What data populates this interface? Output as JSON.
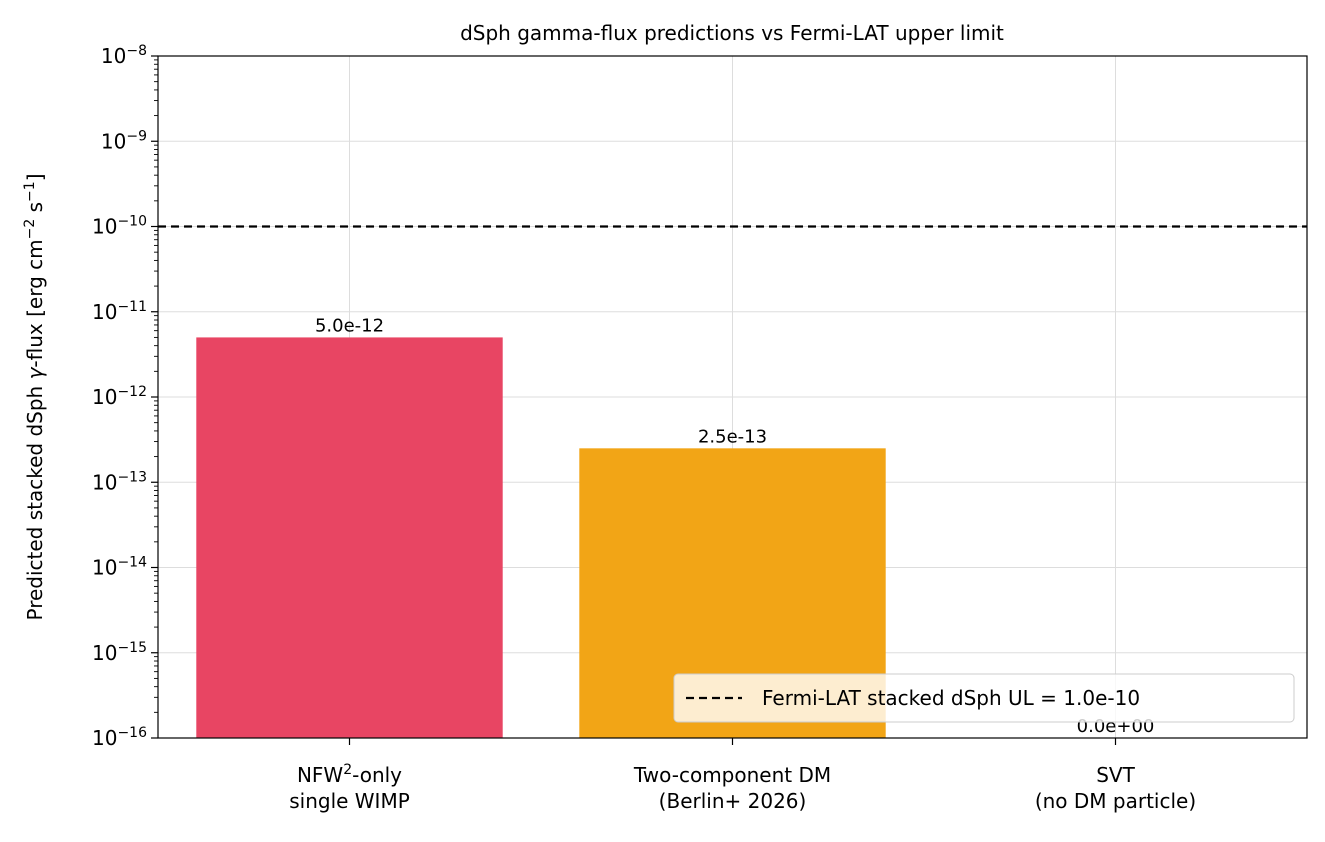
{
  "chart_data": {
    "type": "bar",
    "title": "dSph gamma-flux predictions vs Fermi-LAT upper limit",
    "ylabel": {
      "pre": "Predicted stacked dSph ",
      "gamma": "γ",
      "mid": "-flux [erg cm",
      "sup1": "−2",
      "mid2": " s",
      "sup2": "−1",
      "post": "]"
    },
    "yscale": "log",
    "ylim": [
      1e-16,
      1e-08
    ],
    "ytick_exponents": [
      "−16",
      "−15",
      "−14",
      "−13",
      "−12",
      "−11",
      "−10",
      "−9",
      "−8"
    ],
    "ytick_base": "10",
    "grid": true,
    "categories": [
      {
        "line1": "NFW",
        "line1_sup": "2",
        "line1_rest": "-only",
        "line2": "single WIMP"
      },
      {
        "line1": "Two-component DM",
        "line1_sup": "",
        "line1_rest": "",
        "line2": "(Berlin+ 2026)"
      },
      {
        "line1": "SVT",
        "line1_sup": "",
        "line1_rest": "",
        "line2": "(no DM particle)"
      }
    ],
    "values": [
      5e-12,
      2.5e-13,
      0.0
    ],
    "value_labels": [
      "5.0e-12",
      "2.5e-13",
      "0.0e+00"
    ],
    "bar_colors": [
      "#e84563",
      "#f2a516",
      "#8a8a8a"
    ],
    "reference_line": {
      "value": 1e-10,
      "style": "dashed",
      "color": "#000000",
      "label": "Fermi-LAT stacked dSph UL = 1.0e-10"
    },
    "legend_position": "lower-right"
  }
}
